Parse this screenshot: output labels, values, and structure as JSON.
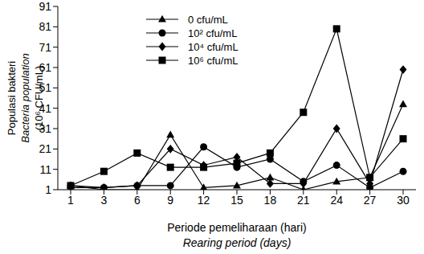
{
  "chart_data": {
    "type": "line",
    "y_label": [
      "Populasi bakteri",
      "Bacteria population",
      "(10⁶ CFU/mL)"
    ],
    "x_label": [
      "Periode pemeliharaan (hari)",
      "Rearing period (days)"
    ],
    "categories": [
      "1",
      "3",
      "6",
      "9",
      "12",
      "15",
      "18",
      "21",
      "24",
      "27",
      "30"
    ],
    "ylim": [
      1,
      91
    ],
    "yticks": [
      1,
      11,
      21,
      31,
      41,
      51,
      61,
      71,
      81,
      91
    ],
    "legend": "upper left",
    "grid": false,
    "series": [
      {
        "name": "0 cfu/mL",
        "color": "#000000",
        "marker": "triangle",
        "values": [
          3,
          1,
          1,
          28,
          2,
          3,
          7,
          1,
          5,
          7,
          43
        ]
      },
      {
        "name": "10² cfu/mL",
        "color": "#000000",
        "marker": "circle",
        "values": [
          3,
          2,
          3,
          3,
          22,
          12,
          16,
          5,
          13,
          2,
          10
        ]
      },
      {
        "name": "10⁴ cfu/mL",
        "color": "#000000",
        "marker": "diamond",
        "values": [
          2,
          2,
          3,
          21,
          13,
          17,
          4,
          4,
          31,
          4,
          60
        ]
      },
      {
        "name": "10⁶ cfu/mL",
        "color": "#000000",
        "marker": "square",
        "values": [
          3,
          10,
          19,
          12,
          12,
          14,
          19,
          39,
          80,
          7,
          26
        ]
      }
    ]
  }
}
